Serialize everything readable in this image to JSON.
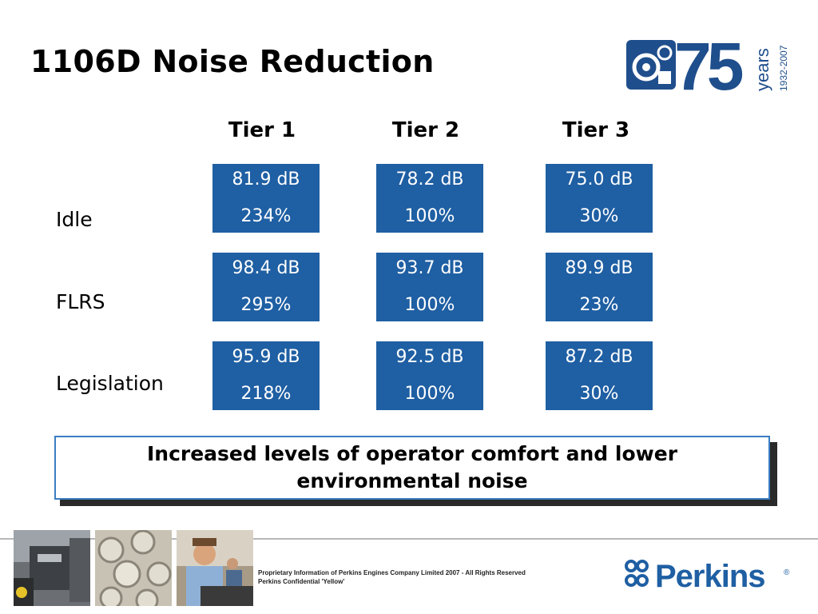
{
  "slide": {
    "title": "1106D Noise Reduction"
  },
  "logo_75": {
    "big_number": "75",
    "word": "years",
    "dates": "1932-2007",
    "icon": "engine-icon",
    "color": "#1f4e8c"
  },
  "table": {
    "columns": [
      "Tier 1",
      "Tier 2",
      "Tier 3"
    ],
    "rows": [
      {
        "label": "Idle",
        "cells": [
          {
            "db": "81.9 dB",
            "pct": "234%"
          },
          {
            "db": "78.2 dB",
            "pct": "100%"
          },
          {
            "db": "75.0 dB",
            "pct": "30%"
          }
        ]
      },
      {
        "label": "FLRS",
        "cells": [
          {
            "db": "98.4 dB",
            "pct": "295%"
          },
          {
            "db": "93.7 dB",
            "pct": "100%"
          },
          {
            "db": "89.9 dB",
            "pct": "23%"
          }
        ]
      },
      {
        "label": "Legislation",
        "cells": [
          {
            "db": "95.9 dB",
            "pct": "218%"
          },
          {
            "db": "92.5 dB",
            "pct": "100%"
          },
          {
            "db": "87.2 dB",
            "pct": "30%"
          }
        ]
      }
    ],
    "cell_color": "#1f5fa3"
  },
  "callout": {
    "text": "Increased levels of operator comfort and lower environmental noise"
  },
  "footer": {
    "line1": "Proprietary Information of Perkins Engines Company Limited 2007 - All Rights Reserved",
    "line2": "Perkins Confidential 'Yellow'",
    "photos": [
      "engine-photo",
      "pistons-photo",
      "people-photo"
    ],
    "brand": "Perkins",
    "brand_mark": "®",
    "brand_color": "#1f5fa3"
  }
}
